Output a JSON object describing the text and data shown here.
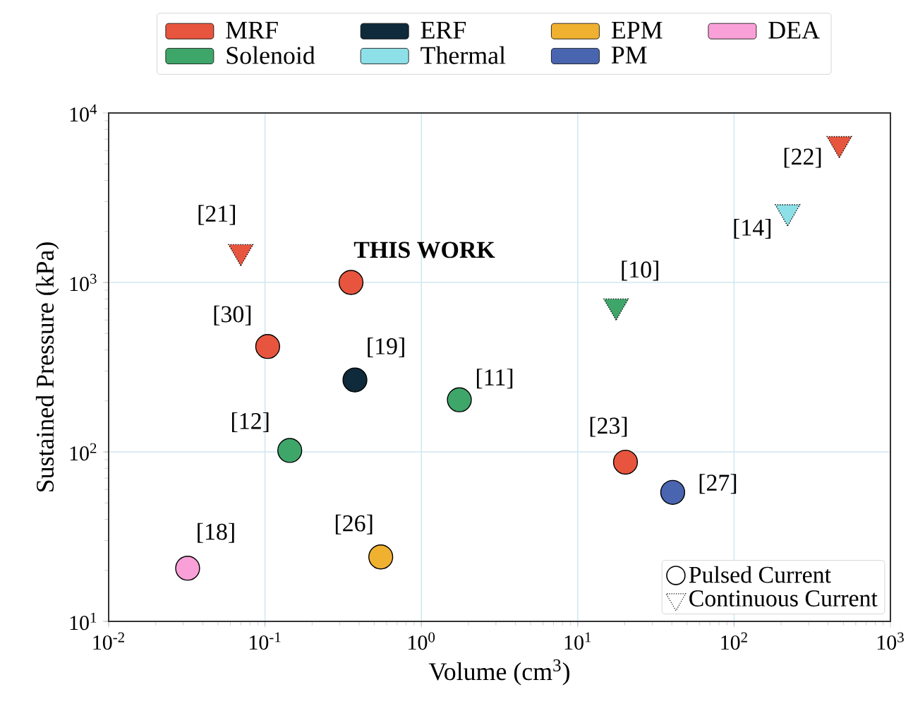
{
  "chart_data": {
    "type": "scatter",
    "xlabel": "Volume (cm$^{3}$)",
    "ylabel": "Sustained Pressure (kPa)",
    "log": "xy",
    "grid": true,
    "legend": "top",
    "xlim": [
      0.01,
      1000
    ],
    "ylim": [
      10,
      10000
    ],
    "xticks": [
      {
        "value": 0.01,
        "label": "10$^{-2}$"
      },
      {
        "value": 0.1,
        "label": "10$^{-1}$"
      },
      {
        "value": 1,
        "label": "10$^{0}$"
      },
      {
        "value": 10,
        "label": "10$^{1}$"
      },
      {
        "value": 100,
        "label": "10$^{2}$"
      },
      {
        "value": 1000,
        "label": "10$^{3}$"
      }
    ],
    "yticks": [
      {
        "value": 10,
        "label": "10$^{1}$"
      },
      {
        "value": 100,
        "label": "10$^{2}$"
      },
      {
        "value": 1000,
        "label": "10$^{3}$"
      },
      {
        "value": 10000,
        "label": "10$^{4}$"
      }
    ],
    "series": [
      {
        "name": "MRF",
        "color": "#e8553e",
        "marker": "circle",
        "x": [
          0.355,
          0.104,
          20.2
        ],
        "values": [
          1000,
          419,
          87
        ]
      },
      {
        "name": "ERF",
        "color": "#0f2a3a",
        "marker": "circle",
        "x": [
          0.376
        ],
        "values": [
          266
        ]
      },
      {
        "name": "EPM",
        "color": "#f0b030",
        "marker": "circle",
        "x": [
          0.55
        ],
        "values": [
          24
        ]
      },
      {
        "name": "DEA",
        "color": "#f9a0d8",
        "marker": "circle",
        "x": [
          0.032
        ],
        "values": [
          20.6
        ]
      },
      {
        "name": "Solenoid",
        "color": "#3fa66a",
        "marker": "circle",
        "x": [
          1.75,
          0.144
        ],
        "values": [
          203,
          102
        ]
      },
      {
        "name": "Thermal",
        "color": "#8ee0e8",
        "marker": "triangle",
        "x": [
          220
        ],
        "values": [
          2610
        ]
      },
      {
        "name": "PM",
        "color": "#4a65b0",
        "marker": "circle",
        "x": [
          40.5
        ],
        "values": [
          57.7
        ]
      },
      {
        "color": "#e8553e",
        "marker": "triangle",
        "x": [
          0.07,
          471
        ],
        "values": [
          1520,
          6590
        ]
      },
      {
        "color": "#3fa66a",
        "marker": "triangle",
        "x": [
          17.6
        ],
        "values": [
          726
        ]
      }
    ],
    "annotations": [
      {
        "text": "[21]",
        "x": 0.07,
        "y": 1520
      },
      {
        "text": "THIS WORK",
        "x": 0.355,
        "y": 1000
      },
      {
        "text": "[30]",
        "x": 0.104,
        "y": 419
      },
      {
        "text": "[19]",
        "x": 0.376,
        "y": 266
      },
      {
        "text": "[11]",
        "x": 1.75,
        "y": 203
      },
      {
        "text": "[12]",
        "x": 0.144,
        "y": 102
      },
      {
        "text": "[18]",
        "x": 0.032,
        "y": 20.6
      },
      {
        "text": "[26]",
        "x": 0.55,
        "y": 24
      },
      {
        "text": "[23]",
        "x": 20.2,
        "y": 87
      },
      {
        "text": "[27]",
        "x": 40.5,
        "y": 57.7
      },
      {
        "text": "[10]",
        "x": 17.6,
        "y": 726
      },
      {
        "text": "[14]",
        "x": 220,
        "y": 2610
      },
      {
        "text": "[22]",
        "x": 471,
        "y": 6590
      },
      "Pulsed Current",
      "Continuous Current"
    ]
  }
}
